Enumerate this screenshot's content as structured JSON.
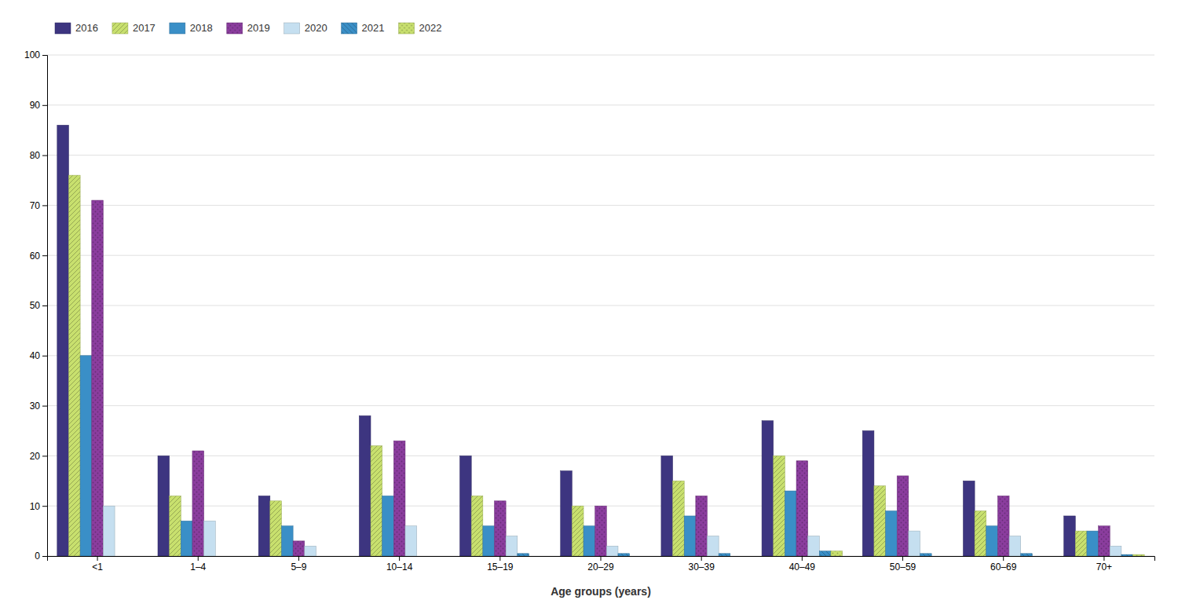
{
  "chart_data": {
    "type": "bar",
    "x_label": "Age groups (years)",
    "categories": [
      "<1",
      "1–4",
      "5–9",
      "10–14",
      "15–19",
      "20–29",
      "30–39",
      "40–49",
      "50–59",
      "60–69",
      "70+"
    ],
    "series": [
      {
        "name": "2016",
        "color": "#3d3580",
        "values": [
          86,
          20,
          12,
          28,
          20,
          17,
          20,
          27,
          25,
          15,
          8
        ]
      },
      {
        "name": "2017",
        "color": "#c8e06e",
        "values": [
          76,
          12,
          11,
          22,
          12,
          10,
          15,
          20,
          14,
          9,
          5
        ]
      },
      {
        "name": "2018",
        "color": "#3a8fc7",
        "values": [
          40,
          7,
          6,
          12,
          6,
          6,
          8,
          13,
          9,
          6,
          5
        ]
      },
      {
        "name": "2019",
        "color": "#8b3d9e",
        "values": [
          71,
          21,
          3,
          23,
          11,
          10,
          12,
          19,
          16,
          12,
          6
        ]
      },
      {
        "name": "2020",
        "color": "#c5dff0",
        "values": [
          10,
          7,
          2,
          6,
          4,
          2,
          4,
          4,
          5,
          4,
          2
        ]
      },
      {
        "name": "2021",
        "color": "#3a8fc7",
        "values": [
          0,
          0,
          0,
          0,
          0.5,
          0.5,
          0.5,
          1,
          0.5,
          0.5,
          0.3
        ]
      },
      {
        "name": "2022",
        "color": "#c8e06e",
        "values": [
          0,
          0,
          0,
          0,
          0,
          0,
          0,
          1,
          0,
          0,
          0.3
        ]
      }
    ],
    "ylim": [
      0,
      100
    ],
    "yticks": [
      0,
      10,
      20,
      30,
      40,
      50,
      60,
      70,
      80,
      90,
      100
    ],
    "grid": true,
    "legend": "top-left"
  }
}
